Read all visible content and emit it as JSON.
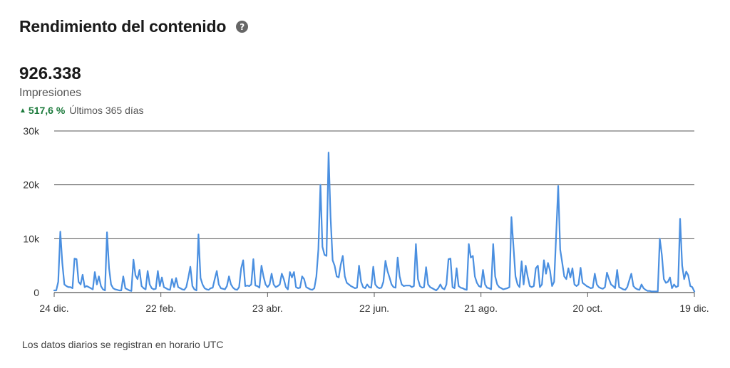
{
  "header": {
    "title": "Rendimiento del contenido",
    "help_icon": "question-circle-icon"
  },
  "summary": {
    "value": "926.338",
    "label": "Impresiones",
    "change_icon": "triangle-up-icon",
    "change_pct": "517,6 %",
    "period": "Últimos 365 días"
  },
  "footnote": "Los datos diarios se registran en horario UTC",
  "colors": {
    "line": "#4a8fe0",
    "grid": "#555555",
    "positive": "#1b7a3b"
  },
  "chart_data": {
    "type": "line",
    "title": "",
    "xlabel": "",
    "ylabel": "",
    "ylim": [
      0,
      30000
    ],
    "y_ticks": [
      {
        "value": 0,
        "label": "0"
      },
      {
        "value": 10000,
        "label": "10k"
      },
      {
        "value": 20000,
        "label": "20k"
      },
      {
        "value": 30000,
        "label": "30k"
      }
    ],
    "x_ticks": [
      "24 dic.",
      "22 feb.",
      "23 abr.",
      "22 jun.",
      "21 ago.",
      "20 oct.",
      "19 dic."
    ],
    "grid": true,
    "legend": "none",
    "series": [
      {
        "values": [
          400,
          400,
          2000,
          11300,
          5500,
          1500,
          1200,
          1000,
          1000,
          800,
          6300,
          6200,
          2000,
          1500,
          3300,
          1000,
          1200,
          1000,
          800,
          600,
          3800,
          1500,
          3000,
          1200,
          600,
          400,
          11200,
          4500,
          1500,
          800,
          600,
          500,
          400,
          400,
          3000,
          800,
          600,
          400,
          300,
          6100,
          3200,
          2500,
          4200,
          1200,
          800,
          600,
          4000,
          1500,
          800,
          600,
          700,
          4000,
          1200,
          2800,
          1000,
          800,
          600,
          500,
          2500,
          1000,
          2700,
          1000,
          800,
          600,
          500,
          1000,
          2800,
          4800,
          1200,
          600,
          400,
          10800,
          2700,
          1500,
          800,
          600,
          500,
          800,
          900,
          2500,
          4000,
          1500,
          800,
          700,
          600,
          1200,
          3000,
          1500,
          900,
          600,
          500,
          1000,
          4500,
          6000,
          1200,
          1300,
          1200,
          1500,
          6200,
          1300,
          1200,
          900,
          5000,
          3000,
          1500,
          1000,
          1500,
          3500,
          1500,
          1000,
          1200,
          1500,
          3500,
          2500,
          1000,
          600,
          3800,
          2800,
          3800,
          1000,
          800,
          900,
          3000,
          2500,
          1000,
          800,
          600,
          500,
          800,
          3000,
          8000,
          20000,
          8500,
          7000,
          6800,
          26000,
          14000,
          6000,
          5000,
          3000,
          2800,
          5200,
          6800,
          3000,
          1800,
          1500,
          1200,
          1000,
          800,
          900,
          5000,
          2000,
          1000,
          800,
          1500,
          1000,
          900,
          4800,
          1500,
          1000,
          800,
          900,
          2000,
          5900,
          4000,
          2800,
          1500,
          1000,
          900,
          6500,
          3000,
          1500,
          1200,
          1300,
          1300,
          1300,
          1000,
          1200,
          9000,
          2500,
          1200,
          900,
          1000,
          4700,
          1500,
          1000,
          800,
          600,
          400,
          800,
          1500,
          800,
          600,
          1500,
          6200,
          6300,
          1000,
          800,
          4500,
          1200,
          900,
          800,
          600,
          500,
          9000,
          6500,
          6800,
          3000,
          1800,
          1200,
          1000,
          4200,
          1500,
          900,
          800,
          600,
          9000,
          3000,
          1500,
          1000,
          800,
          600,
          700,
          800,
          1000,
          14000,
          8500,
          3000,
          1500,
          1000,
          5800,
          1500,
          5000,
          3000,
          1200,
          1000,
          1200,
          4500,
          5000,
          1000,
          1500,
          6000,
          3500,
          5500,
          4000,
          1200,
          2000,
          10500,
          19800,
          8000,
          5500,
          3000,
          2500,
          4500,
          2800,
          4500,
          1500,
          1200,
          1500,
          4600,
          1800,
          1500,
          1200,
          1000,
          800,
          900,
          3500,
          1500,
          1000,
          800,
          700,
          1000,
          3700,
          2500,
          1500,
          1200,
          800,
          4200,
          1000,
          800,
          600,
          500,
          1000,
          2300,
          3500,
          1200,
          800,
          600,
          500,
          1500,
          800,
          500,
          300,
          300,
          200,
          200,
          200,
          200,
          10000,
          7000,
          2500,
          1800,
          2000,
          2800,
          800,
          1500,
          1000,
          1200,
          13700,
          5000,
          2500,
          3900,
          3200,
          1200,
          1000,
          200
        ]
      }
    ]
  }
}
